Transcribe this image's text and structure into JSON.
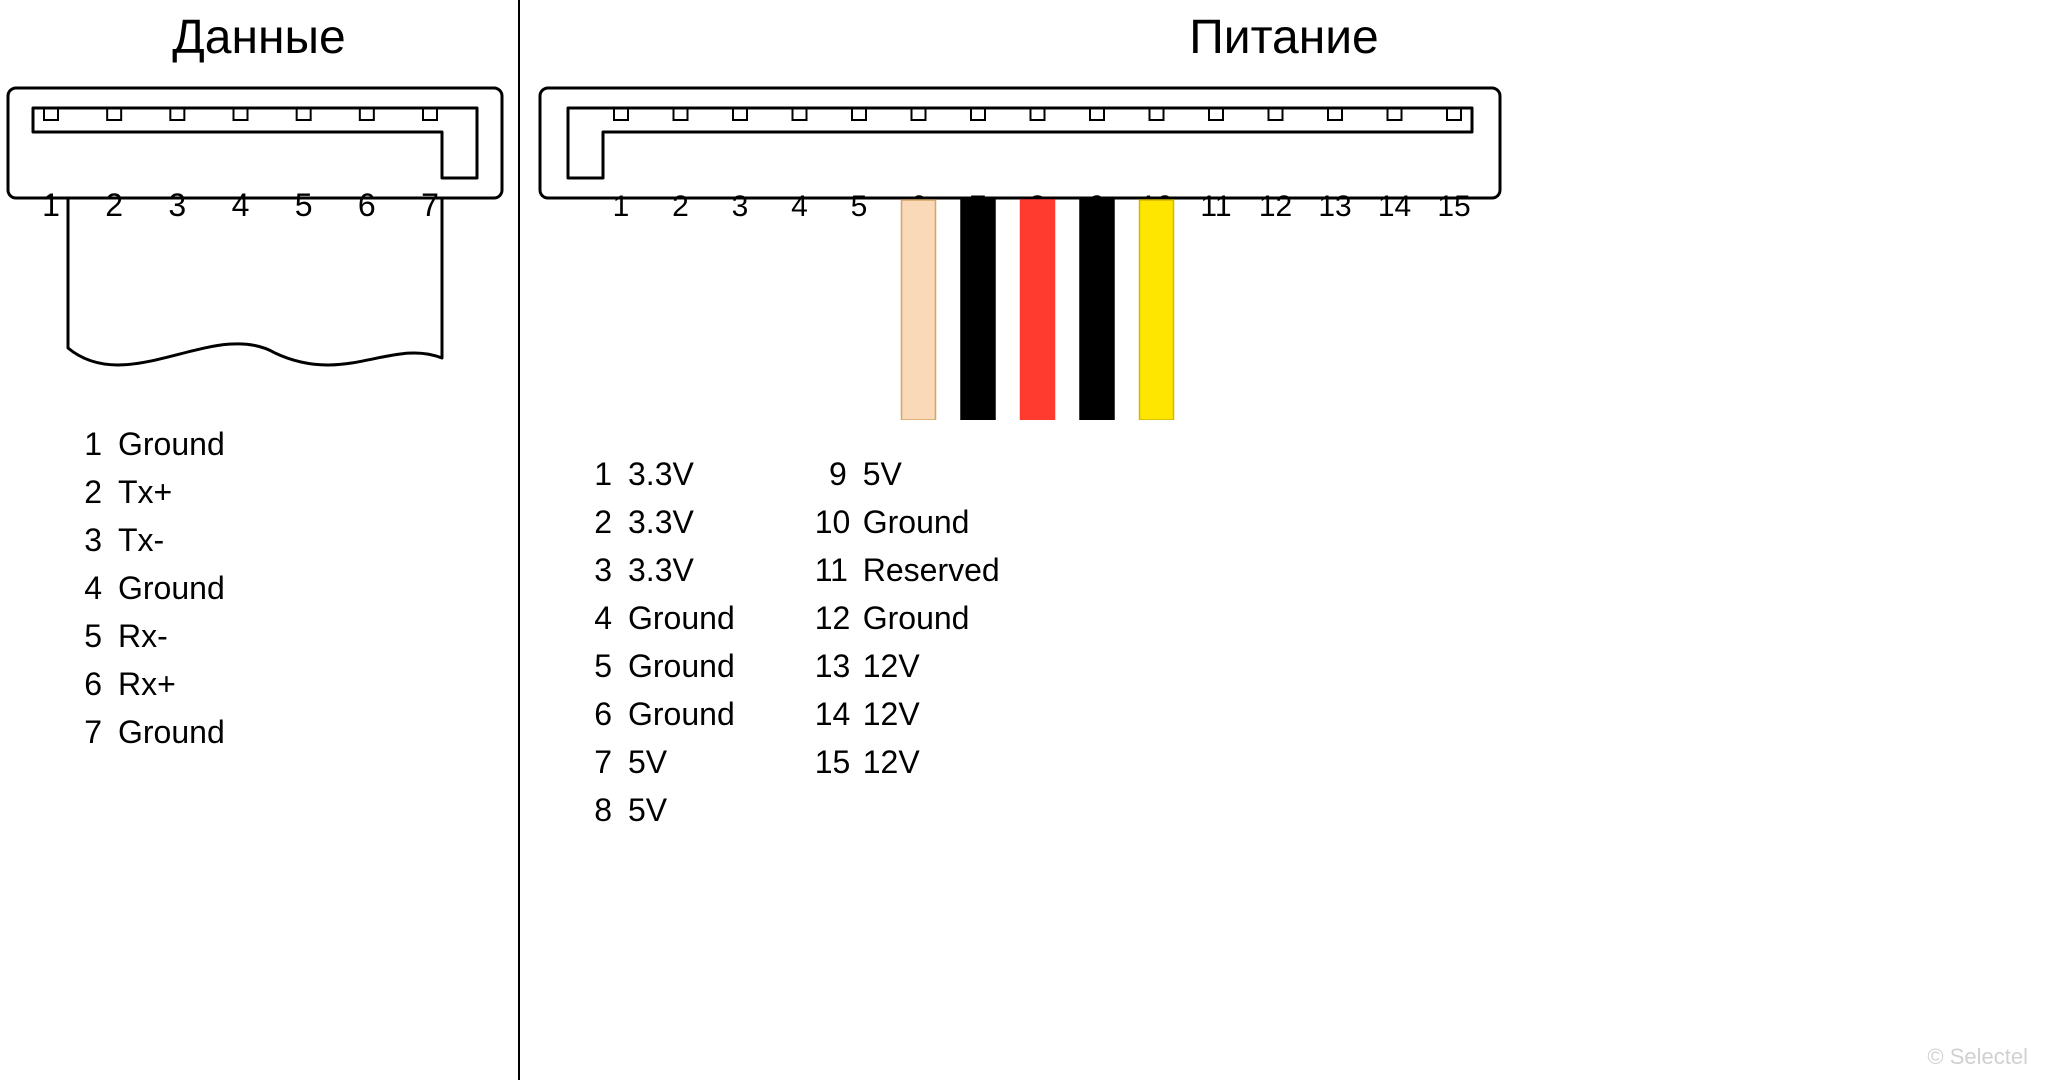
{
  "data_section": {
    "title": "Данные",
    "pins": [
      {
        "n": "1",
        "label": "Ground"
      },
      {
        "n": "2",
        "label": "Tx+"
      },
      {
        "n": "3",
        "label": "Tx-"
      },
      {
        "n": "4",
        "label": "Ground"
      },
      {
        "n": "5",
        "label": "Rx-"
      },
      {
        "n": "6",
        "label": "Rx+"
      },
      {
        "n": "7",
        "label": "Ground"
      }
    ],
    "connector": {
      "pin_count": 7,
      "outline_stroke": "#000000",
      "outline_stroke_width": 3,
      "number_fontsize": 32
    }
  },
  "power_section": {
    "title": "Питание",
    "pins_col1": [
      {
        "n": "1",
        "label": "3.3V"
      },
      {
        "n": "2",
        "label": "3.3V"
      },
      {
        "n": "3",
        "label": "3.3V"
      },
      {
        "n": "4",
        "label": "Ground"
      },
      {
        "n": "5",
        "label": "Ground"
      },
      {
        "n": "6",
        "label": "Ground"
      },
      {
        "n": "7",
        "label": "5V"
      },
      {
        "n": "8",
        "label": "5V"
      }
    ],
    "pins_col2": [
      {
        "n": "9",
        "label": "5V"
      },
      {
        "n": "10",
        "label": "Ground"
      },
      {
        "n": "11",
        "label": "Reserved"
      },
      {
        "n": "12",
        "label": "Ground"
      },
      {
        "n": "13",
        "label": "12V"
      },
      {
        "n": "14",
        "label": "12V"
      },
      {
        "n": "15",
        "label": "12V"
      }
    ],
    "connector": {
      "pin_count": 15,
      "outline_stroke": "#000000",
      "outline_stroke_width": 3,
      "number_fontsize": 30
    },
    "wires": [
      {
        "pin": 6,
        "fill": "#f9d9b8",
        "stroke": "#d4a566"
      },
      {
        "pin": 7,
        "fill": "#000000",
        "stroke": "#000000"
      },
      {
        "pin": 8,
        "fill": "#ff3b30",
        "stroke": "#ff3b30"
      },
      {
        "pin": 9,
        "fill": "#000000",
        "stroke": "#000000"
      },
      {
        "pin": 10,
        "fill": "#ffe600",
        "stroke": "#d4b800"
      }
    ],
    "wire_width": 34,
    "wire_length": 220
  },
  "watermark": "© Selectel",
  "colors": {
    "background": "#ffffff",
    "text": "#000000",
    "watermark": "#d0d0d0"
  },
  "typography": {
    "title_fontsize": 48,
    "table_fontsize": 32,
    "font_family": "Arial"
  }
}
